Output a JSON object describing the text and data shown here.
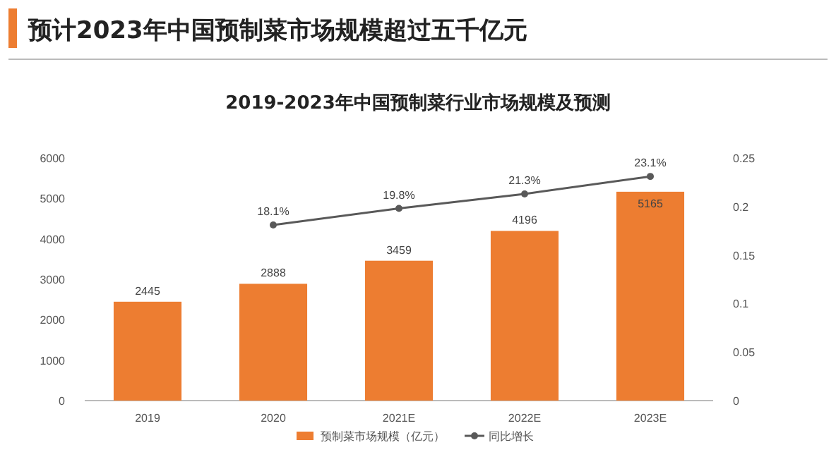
{
  "chart_data": {
    "type": "bar",
    "title": "预计2023年中国预制菜市场规模超过五千亿元",
    "subtitle": "2019-2023年中国预制菜行业市场规模及预测",
    "categories": [
      "2019",
      "2020",
      "2021E",
      "2022E",
      "2023E"
    ],
    "series": [
      {
        "name": "预制菜市场规模（亿元）",
        "color": "#ed7d31",
        "values": [
          2445,
          2888,
          3459,
          4196,
          5165
        ]
      },
      {
        "name": "同比增长",
        "type": "line",
        "axis": "y2",
        "color": "#595959",
        "values": [
          null,
          0.181,
          0.198,
          0.213,
          0.231
        ],
        "value_labels": [
          null,
          "18.1%",
          "19.8%",
          "21.3%",
          "23.1%"
        ]
      }
    ],
    "data_labels": true,
    "marker": "circle",
    "ylim": [
      0,
      6000
    ],
    "yticks": [
      0,
      1000,
      2000,
      3000,
      4000,
      5000,
      6000
    ],
    "y2lim": [
      0,
      0.25
    ],
    "y2ticks": [
      0,
      0.05,
      0.1,
      0.15,
      0.2,
      0.25
    ],
    "legend": "bottom",
    "grid": false
  }
}
